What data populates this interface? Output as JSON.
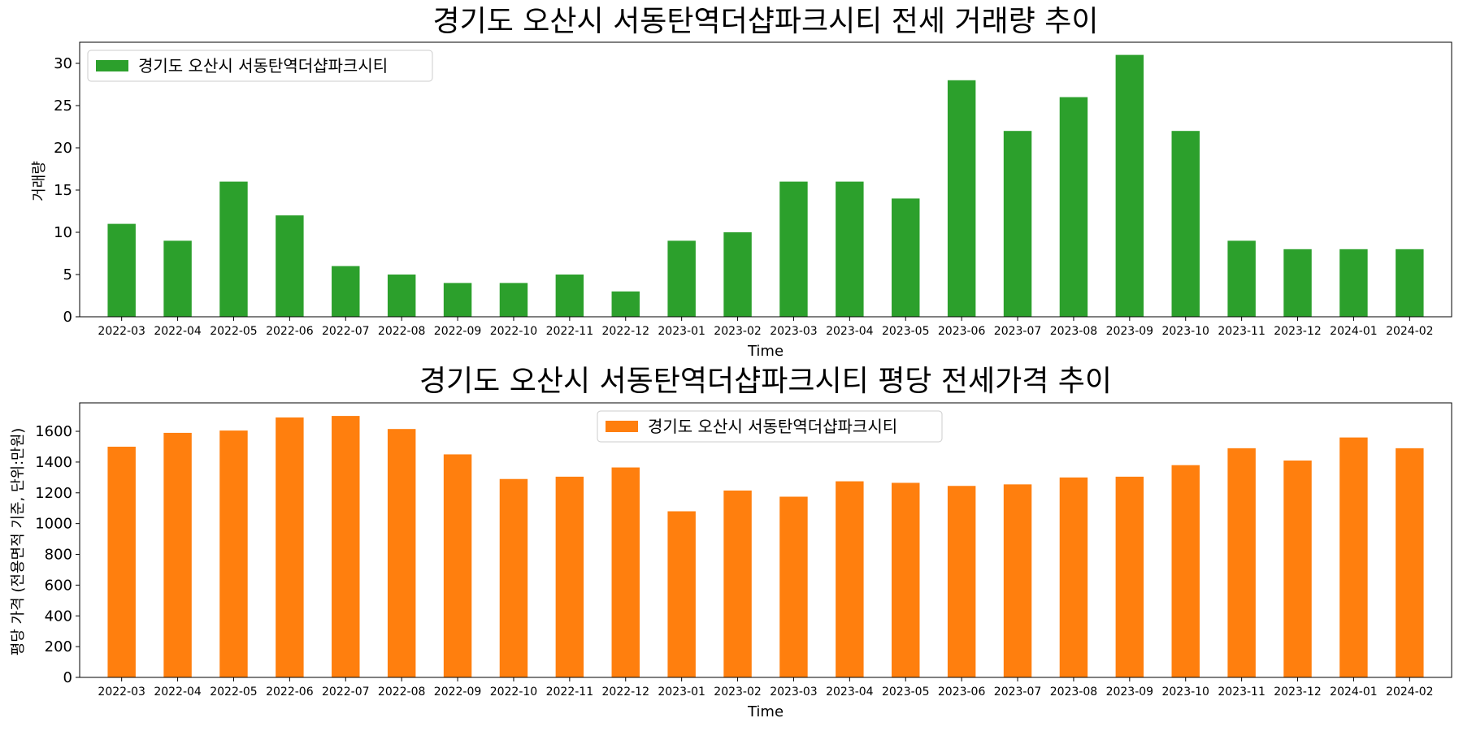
{
  "chart_data": [
    {
      "type": "bar",
      "title": "경기도 오산시 서동탄역더샵파크시티 전세 거래량 추이",
      "xlabel": "Time",
      "ylabel": "거래량",
      "categories": [
        "2022-03",
        "2022-04",
        "2022-05",
        "2022-06",
        "2022-07",
        "2022-08",
        "2022-09",
        "2022-10",
        "2022-11",
        "2022-12",
        "2023-01",
        "2023-02",
        "2023-03",
        "2023-04",
        "2023-05",
        "2023-06",
        "2023-07",
        "2023-08",
        "2023-09",
        "2023-10",
        "2023-11",
        "2023-12",
        "2024-01",
        "2024-02"
      ],
      "series": [
        {
          "name": "경기도 오산시 서동탄역더샵파크시티",
          "color": "#2ca02c",
          "values": [
            11,
            9,
            16,
            12,
            6,
            5,
            4,
            4,
            5,
            3,
            9,
            10,
            16,
            16,
            14,
            28,
            22,
            26,
            31,
            22,
            9,
            8,
            8,
            8
          ]
        }
      ],
      "ylim": [
        0,
        32.5
      ],
      "yticks": [
        0,
        5,
        10,
        15,
        20,
        25,
        30
      ],
      "legend_position": "upper left",
      "grid": false
    },
    {
      "type": "bar",
      "title": "경기도 오산시 서동탄역더샵파크시티 평당 전세가격 추이",
      "xlabel": "Time",
      "ylabel": "평당 가격 (전용면적 기준, 단위:만원)",
      "categories": [
        "2022-03",
        "2022-04",
        "2022-05",
        "2022-06",
        "2022-07",
        "2022-08",
        "2022-09",
        "2022-10",
        "2022-11",
        "2022-12",
        "2023-01",
        "2023-02",
        "2023-03",
        "2023-04",
        "2023-05",
        "2023-06",
        "2023-07",
        "2023-08",
        "2023-09",
        "2023-10",
        "2023-11",
        "2023-12",
        "2024-01",
        "2024-02"
      ],
      "series": [
        {
          "name": "경기도 오산시 서동탄역더샵파크시티",
          "color": "#ff7f0e",
          "values": [
            1500,
            1590,
            1605,
            1690,
            1700,
            1615,
            1450,
            1290,
            1305,
            1365,
            1080,
            1215,
            1175,
            1275,
            1265,
            1245,
            1255,
            1300,
            1305,
            1380,
            1490,
            1410,
            1560,
            1490
          ]
        }
      ],
      "ylim": [
        0,
        1785
      ],
      "yticks": [
        0,
        200,
        400,
        600,
        800,
        1000,
        1200,
        1400,
        1600
      ],
      "legend_position": "upper center",
      "grid": false
    }
  ]
}
